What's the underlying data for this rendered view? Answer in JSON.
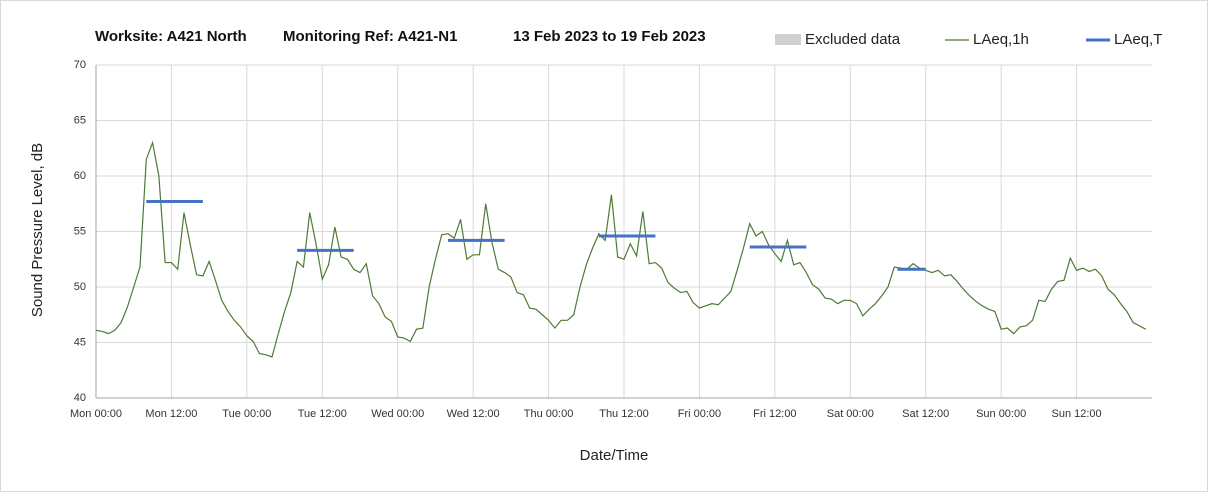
{
  "chart_data": {
    "type": "line",
    "title_parts": [
      "Worksite: A421 North",
      "Monitoring Ref: A421-N1",
      "13 Feb 2023 to 19 Feb 2023"
    ],
    "x_label": "Date/Time",
    "y_label": "Sound Pressure Level, dB",
    "xlim": [
      0,
      168
    ],
    "xticks": [
      {
        "value": 0,
        "label": "Mon 00:00"
      },
      {
        "value": 12,
        "label": "Mon 12:00"
      },
      {
        "value": 24,
        "label": "Tue 00:00"
      },
      {
        "value": 36,
        "label": "Tue 12:00"
      },
      {
        "value": 48,
        "label": "Wed 00:00"
      },
      {
        "value": 60,
        "label": "Wed 12:00"
      },
      {
        "value": 72,
        "label": "Thu 00:00"
      },
      {
        "value": 84,
        "label": "Thu 12:00"
      },
      {
        "value": 96,
        "label": "Fri 00:00"
      },
      {
        "value": 108,
        "label": "Fri 12:00"
      },
      {
        "value": 120,
        "label": "Sat 00:00"
      },
      {
        "value": 132,
        "label": "Sat 12:00"
      },
      {
        "value": 144,
        "label": "Sun 00:00"
      },
      {
        "value": 156,
        "label": "Sun 12:00"
      }
    ],
    "ylim": [
      40,
      70
    ],
    "yticks": [
      40,
      45,
      50,
      55,
      60,
      65,
      70
    ],
    "grid": true,
    "excluded_legend": {
      "name": "Excluded data",
      "color": "#d0d0d0"
    },
    "x": [
      0,
      1,
      2,
      3,
      4,
      5,
      6,
      7,
      8,
      9,
      10,
      11,
      12,
      13,
      14,
      15,
      16,
      17,
      18,
      19,
      20,
      21,
      22,
      23,
      24,
      25,
      26,
      27,
      28,
      29,
      30,
      31,
      32,
      33,
      34,
      35,
      36,
      37,
      38,
      39,
      40,
      41,
      42,
      43,
      44,
      45,
      46,
      47,
      48,
      49,
      50,
      51,
      52,
      53,
      54,
      55,
      56,
      57,
      58,
      59,
      60,
      61,
      62,
      63,
      64,
      65,
      66,
      67,
      68,
      69,
      70,
      71,
      72,
      73,
      74,
      75,
      76,
      77,
      78,
      79,
      80,
      81,
      82,
      83,
      84,
      85,
      86,
      87,
      88,
      89,
      90,
      91,
      92,
      93,
      94,
      95,
      96,
      97,
      98,
      99,
      100,
      101,
      102,
      103,
      104,
      105,
      106,
      107,
      108,
      109,
      110,
      111,
      112,
      113,
      114,
      115,
      116,
      117,
      118,
      119,
      120,
      121,
      122,
      123,
      124,
      125,
      126,
      127,
      128,
      129,
      130,
      131,
      132,
      133,
      134,
      135,
      136,
      137,
      138,
      139,
      140,
      141,
      142,
      143,
      144,
      145,
      146,
      147,
      148,
      149,
      150,
      151,
      152,
      153,
      154,
      155,
      156,
      157,
      158,
      159,
      160,
      161,
      162,
      163,
      164,
      165,
      166,
      167
    ],
    "series": [
      {
        "name": "LAeq,1h",
        "color": "#4e7a35",
        "values": [
          46.1,
          46.0,
          45.8,
          46.1,
          46.8,
          48.2,
          50.0,
          51.8,
          61.5,
          63.0,
          60.0,
          52.2,
          52.2,
          51.6,
          56.7,
          53.8,
          51.1,
          51.0,
          52.3,
          50.6,
          48.8,
          47.8,
          47.0,
          46.4,
          45.6,
          45.1,
          44.0,
          43.9,
          43.7,
          45.8,
          47.8,
          49.5,
          52.3,
          51.8,
          56.7,
          53.9,
          50.7,
          52.0,
          55.4,
          52.7,
          52.5,
          51.6,
          51.3,
          52.1,
          49.2,
          48.5,
          47.3,
          46.9,
          45.5,
          45.4,
          45.1,
          46.2,
          46.3,
          50.0,
          52.5,
          54.7,
          54.8,
          54.4,
          56.1,
          52.5,
          52.9,
          52.9,
          57.5,
          54.0,
          51.6,
          51.3,
          50.9,
          49.5,
          49.3,
          48.1,
          48.0,
          47.5,
          47.0,
          46.3,
          47.0,
          47.0,
          47.5,
          50.0,
          52.0,
          53.5,
          54.8,
          54.2,
          58.3,
          52.7,
          52.5,
          53.9,
          52.8,
          56.8,
          52.1,
          52.2,
          51.7,
          50.4,
          49.9,
          49.5,
          49.6,
          48.6,
          48.1,
          48.3,
          48.5,
          48.4,
          49.0,
          49.6,
          51.5,
          53.5,
          55.7,
          54.6,
          55.0,
          53.8,
          53.0,
          52.3,
          54.2,
          52.0,
          52.2,
          51.3,
          50.2,
          49.8,
          49.0,
          48.9,
          48.5,
          48.8,
          48.8,
          48.5,
          47.4,
          48.0,
          48.5,
          49.2,
          50.0,
          51.8,
          51.7,
          51.6,
          52.1,
          51.7,
          51.5,
          51.3,
          51.5,
          51.0,
          51.1,
          50.5,
          49.8,
          49.2,
          48.7,
          48.3,
          48.0,
          47.8,
          46.2,
          46.3,
          45.8,
          46.4,
          46.5,
          47.0,
          48.8,
          48.7,
          49.8,
          50.5,
          50.6,
          52.6,
          51.5,
          51.7,
          51.4,
          51.6,
          51.0,
          49.8,
          49.3,
          48.5,
          47.8,
          46.8,
          46.5,
          46.2
        ]
      },
      {
        "name": "LAeq,T",
        "color": "#4472c4",
        "segments": [
          {
            "start": 8,
            "end": 17,
            "value": 57.7
          },
          {
            "start": 32,
            "end": 41,
            "value": 53.3
          },
          {
            "start": 56,
            "end": 65,
            "value": 54.2
          },
          {
            "start": 80,
            "end": 89,
            "value": 54.6
          },
          {
            "start": 104,
            "end": 113,
            "value": 53.6
          },
          {
            "start": 127.5,
            "end": 132,
            "value": 51.6
          }
        ]
      }
    ]
  }
}
